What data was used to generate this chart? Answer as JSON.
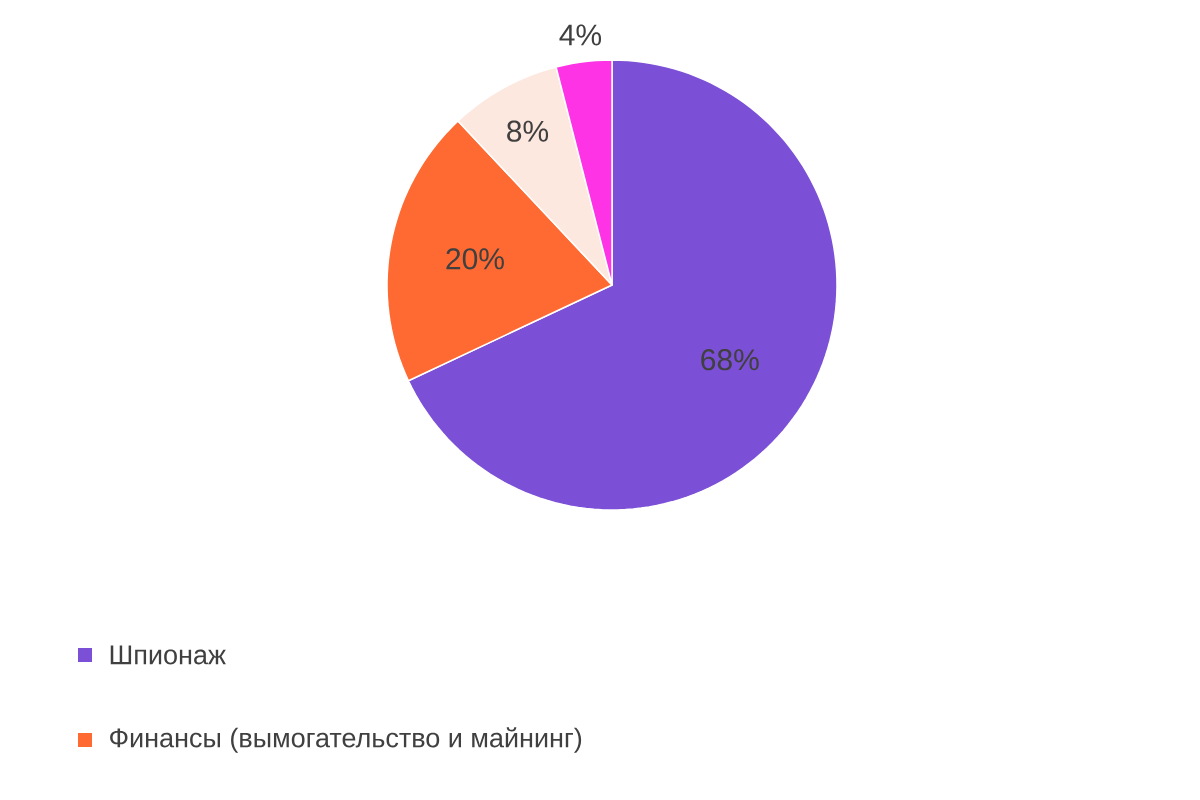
{
  "chart_data": {
    "type": "pie",
    "categories": [
      "Шпионаж",
      "Финансы (вымогательство и майнинг)",
      null,
      null
    ],
    "values": [
      68,
      20,
      8,
      4
    ],
    "colors": [
      "#7b4fd6",
      "#ff6a33",
      "#fde8e0",
      "#ff33e6"
    ],
    "value_labels": [
      "68%",
      "20%",
      "8%",
      "4%"
    ],
    "legend": "bottom"
  }
}
